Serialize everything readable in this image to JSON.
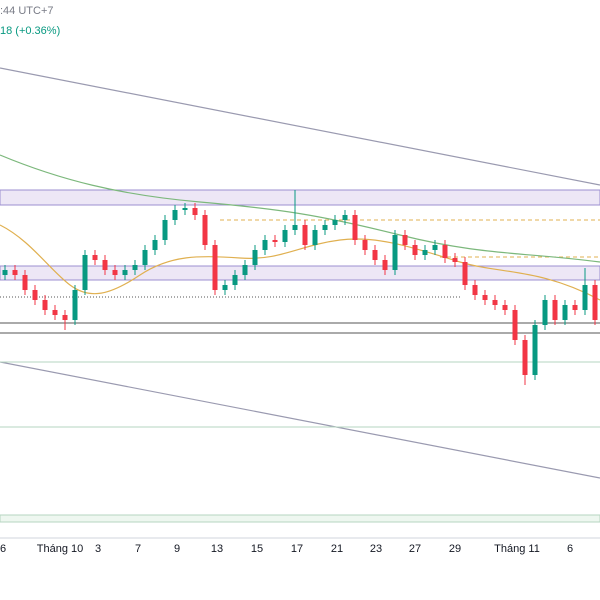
{
  "chart_data": {
    "type": "candlestick",
    "header": ":44 UTC+7",
    "change": "18 (+0.36%)",
    "x_labels": [
      "6",
      "Tháng 10",
      "3",
      "7",
      "9",
      "13",
      "15",
      "17",
      "21",
      "23",
      "27",
      "29",
      "Tháng 11",
      "6"
    ],
    "open": [
      265,
      270,
      265,
      250,
      240,
      230,
      225,
      220,
      250,
      285,
      280,
      270,
      265,
      270,
      275,
      290,
      300,
      320,
      330,
      332,
      325,
      295,
      250,
      255,
      265,
      275,
      290,
      300,
      298,
      310,
      315,
      295,
      310,
      315,
      320,
      325,
      300,
      290,
      280,
      270,
      305,
      295,
      285,
      290,
      295,
      282,
      278,
      255,
      245,
      240,
      235,
      230,
      200,
      165,
      215,
      240,
      220,
      235,
      230,
      255
    ],
    "high": [
      275,
      275,
      270,
      255,
      245,
      235,
      230,
      255,
      290,
      290,
      285,
      275,
      275,
      280,
      295,
      305,
      325,
      335,
      337,
      337,
      330,
      300,
      260,
      270,
      280,
      295,
      305,
      305,
      315,
      350,
      320,
      315,
      320,
      325,
      330,
      330,
      305,
      295,
      285,
      310,
      310,
      300,
      295,
      300,
      300,
      287,
      283,
      260,
      250,
      245,
      240,
      235,
      205,
      220,
      245,
      245,
      240,
      240,
      272,
      260
    ],
    "low": [
      260,
      260,
      245,
      235,
      225,
      220,
      210,
      215,
      245,
      275,
      265,
      260,
      260,
      265,
      270,
      285,
      295,
      315,
      325,
      320,
      290,
      245,
      245,
      250,
      260,
      270,
      285,
      293,
      293,
      305,
      290,
      290,
      305,
      310,
      315,
      295,
      285,
      275,
      265,
      265,
      290,
      280,
      280,
      285,
      277,
      273,
      250,
      240,
      235,
      230,
      225,
      195,
      155,
      160,
      210,
      215,
      215,
      225,
      225,
      215
    ],
    "close": [
      270,
      265,
      250,
      240,
      230,
      225,
      220,
      250,
      285,
      280,
      270,
      265,
      270,
      275,
      290,
      300,
      320,
      330,
      332,
      325,
      295,
      250,
      255,
      265,
      275,
      290,
      300,
      298,
      310,
      315,
      295,
      310,
      315,
      320,
      325,
      300,
      290,
      280,
      270,
      305,
      295,
      285,
      290,
      295,
      282,
      278,
      255,
      245,
      240,
      235,
      230,
      200,
      165,
      215,
      240,
      220,
      235,
      230,
      255,
      220
    ],
    "ylim": [
      0,
      540
    ],
    "up_color": "#089981",
    "down_color": "#f23645"
  }
}
